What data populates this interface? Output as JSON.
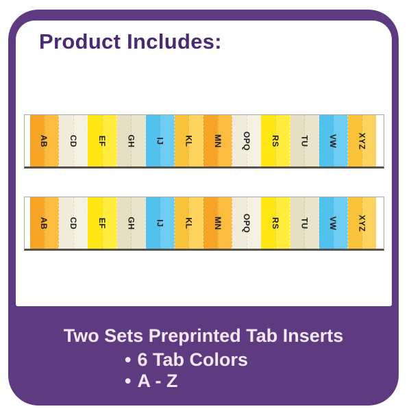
{
  "title": "Product Includes:",
  "footer": {
    "headline": "Two Sets Preprinted Tab Inserts",
    "bullet_char": "•",
    "bullets": [
      "6 Tab Colors",
      "A - Z"
    ]
  },
  "colors": {
    "background_purple": "#5E3B80",
    "card_white": "#FFFFFF",
    "title_purple": "#4A2A70",
    "footer_text": "#F2E9F4",
    "strip_border": "#A8A49E",
    "strip_bottom_edge": "#57524D",
    "tab_label": "#1B1B1B"
  },
  "tab_strips": [
    {
      "name": "tab-strip-1",
      "tabs": [
        {
          "label": "AB",
          "color_name": "orange",
          "hex_left": "#F6A426",
          "hex_right": "#FBBC40"
        },
        {
          "label": "CD",
          "color_name": "cream",
          "hex_left": "#F0ECD9",
          "hex_right": "#F4F1E3"
        },
        {
          "label": "EF",
          "color_name": "yellow",
          "hex_left": "#FFE715",
          "hex_right": "#FFEC3D"
        },
        {
          "label": "GH",
          "color_name": "tan",
          "hex_left": "#E6DEC0",
          "hex_right": "#EBE4CD"
        },
        {
          "label": "IJ",
          "color_name": "blue",
          "hex_left": "#52C1ED",
          "hex_right": "#6ECCF2"
        },
        {
          "label": "KL",
          "color_name": "golden",
          "hex_left": "#F9C23B",
          "hex_right": "#FCD35F"
        },
        {
          "label": "MN",
          "color_name": "orange",
          "hex_left": "#F6A426",
          "hex_right": "#FBBC40"
        },
        {
          "label": "OPQ",
          "color_name": "cream",
          "hex_left": "#F0ECD9",
          "hex_right": "#F4F1E3"
        },
        {
          "label": "RS",
          "color_name": "yellow",
          "hex_left": "#FFE715",
          "hex_right": "#FFEC3D"
        },
        {
          "label": "TU",
          "color_name": "tan",
          "hex_left": "#E6DEC0",
          "hex_right": "#EBE4CD"
        },
        {
          "label": "VW",
          "color_name": "blue",
          "hex_left": "#52C1ED",
          "hex_right": "#6ECCF2"
        },
        {
          "label": "XYZ",
          "color_name": "golden",
          "hex_left": "#F9C23B",
          "hex_right": "#FCD35F"
        }
      ]
    },
    {
      "name": "tab-strip-2",
      "tabs": [
        {
          "label": "AB",
          "color_name": "orange",
          "hex_left": "#F6A426",
          "hex_right": "#FBBC40"
        },
        {
          "label": "CD",
          "color_name": "cream",
          "hex_left": "#F0ECD9",
          "hex_right": "#F4F1E3"
        },
        {
          "label": "EF",
          "color_name": "yellow",
          "hex_left": "#FFE715",
          "hex_right": "#FFEC3D"
        },
        {
          "label": "GH",
          "color_name": "tan",
          "hex_left": "#E6DEC0",
          "hex_right": "#EBE4CD"
        },
        {
          "label": "IJ",
          "color_name": "blue",
          "hex_left": "#52C1ED",
          "hex_right": "#6ECCF2"
        },
        {
          "label": "KL",
          "color_name": "golden",
          "hex_left": "#F9C23B",
          "hex_right": "#FCD35F"
        },
        {
          "label": "MN",
          "color_name": "orange",
          "hex_left": "#F6A426",
          "hex_right": "#FBBC40"
        },
        {
          "label": "OPQ",
          "color_name": "cream",
          "hex_left": "#F0ECD9",
          "hex_right": "#F4F1E3"
        },
        {
          "label": "RS",
          "color_name": "yellow",
          "hex_left": "#FFE715",
          "hex_right": "#FFEC3D"
        },
        {
          "label": "TU",
          "color_name": "tan",
          "hex_left": "#E6DEC0",
          "hex_right": "#EBE4CD"
        },
        {
          "label": "VW",
          "color_name": "blue",
          "hex_left": "#52C1ED",
          "hex_right": "#6ECCF2"
        },
        {
          "label": "XYZ",
          "color_name": "golden",
          "hex_left": "#F9C23B",
          "hex_right": "#FCD35F"
        }
      ]
    }
  ]
}
